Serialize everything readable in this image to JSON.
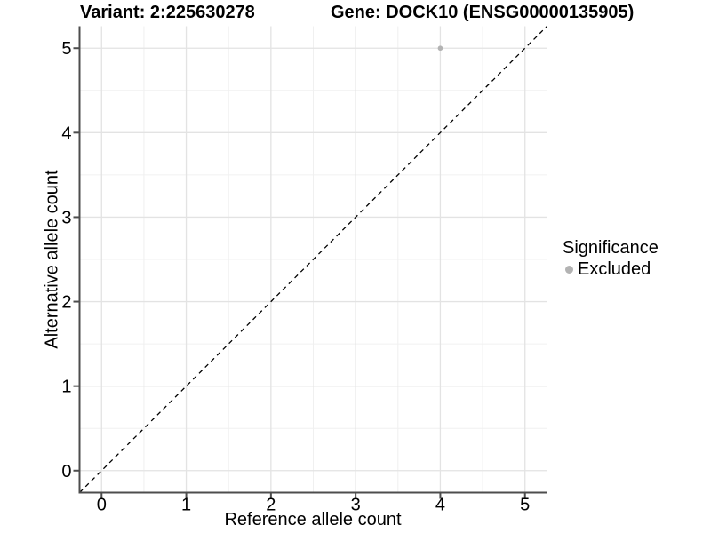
{
  "chart_data": {
    "type": "scatter",
    "title_left": "Variant: 2:225630278",
    "title_right": "Gene: DOCK10 (ENSG00000135905)",
    "xlabel": "Reference allele count",
    "ylabel": "Alternative allele count",
    "xlim": [
      -0.26,
      5.26
    ],
    "ylim": [
      -0.26,
      5.26
    ],
    "x_ticks": [
      0,
      1,
      2,
      3,
      4,
      5
    ],
    "y_ticks": [
      0,
      1,
      2,
      3,
      4,
      5
    ],
    "grid": "major+minor",
    "minor_step": 0.5,
    "reference_line": {
      "type": "identity",
      "style": "dashed",
      "color": "#000000"
    },
    "points": [
      {
        "x": 4,
        "y": 5,
        "series": "Excluded",
        "color": "#b3b3b3"
      }
    ],
    "legend": {
      "title": "Significance",
      "position": "right",
      "entries": [
        {
          "label": "Excluded",
          "color": "#b3b3b3",
          "marker": "circle"
        }
      ]
    }
  },
  "colors": {
    "background": "#ffffff",
    "grid_major": "#e3e3e3",
    "grid_minor": "#f0f0f0",
    "axis": "#4d4d4d",
    "tick_label": "#000000",
    "point": "#b3b3b3"
  }
}
